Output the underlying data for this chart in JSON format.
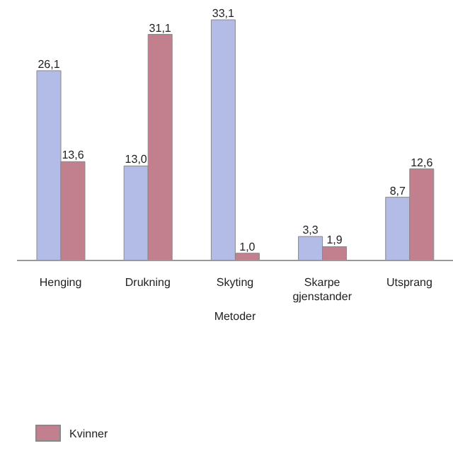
{
  "chart_data": {
    "type": "bar",
    "xlabel": "Metoder",
    "categories": [
      "Henging",
      "Drukning",
      "Skyting",
      "Skarpe gjenstander",
      "Utsprang"
    ],
    "series": [
      {
        "color": "#b3bce6",
        "values": [
          26.1,
          13.0,
          33.1,
          3.3,
          8.7
        ],
        "value_labels": [
          "26,1",
          "13,0",
          "33,1",
          "3,3",
          "8,7"
        ]
      },
      {
        "name": "Kvinner",
        "color": "#c2808f",
        "values": [
          13.6,
          31.1,
          1.0,
          1.9,
          12.6
        ],
        "value_labels": [
          "13,6",
          "31,1",
          "1,0",
          "1,9",
          "12,6"
        ]
      }
    ],
    "legend": "bottom left",
    "grid": false
  }
}
